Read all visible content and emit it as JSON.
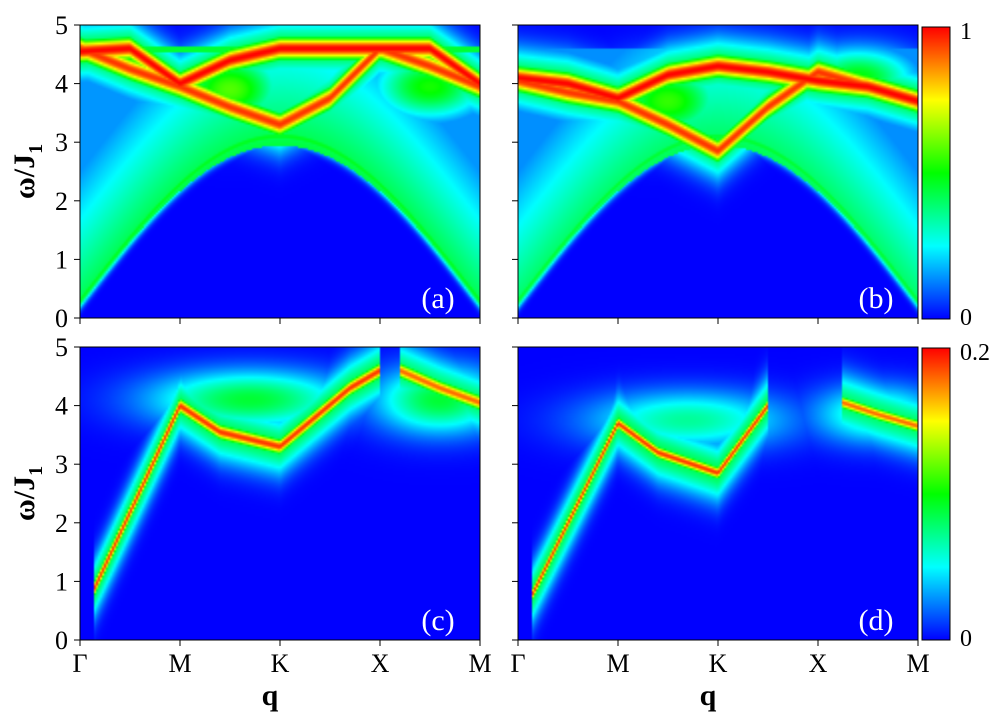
{
  "chart_data": {
    "type": "heatmap",
    "panels": [
      {
        "tag": "(a)",
        "ylabel": "ω/J",
        "ylabel_sub": "1",
        "xlabel": "",
        "ylim": [
          0,
          5
        ],
        "yticks": [
          "0",
          "1",
          "2",
          "3",
          "4",
          "5"
        ],
        "xticks": [],
        "colorbar": null,
        "bands": [
          {
            "x": [
              0,
              0.5,
              1,
              1.5,
              2,
              2.5,
              3,
              3.5,
              4
            ],
            "y": [
              4.6,
              4.25,
              3.95,
              3.6,
              3.3,
              3.75,
              4.6,
              4.3,
              3.95
            ],
            "w": 0.15,
            "a": 0.95
          },
          {
            "x": [
              0,
              0.5,
              1,
              1.5,
              2,
              2.5,
              3,
              3.5,
              4
            ],
            "y": [
              4.55,
              4.6,
              4.0,
              4.4,
              4.6,
              4.6,
              4.6,
              4.6,
              4.0
            ],
            "w": 0.15,
            "a": 1.0
          }
        ],
        "blobs": [
          {
            "x": 1.5,
            "y": 3.9,
            "rx": 0.38,
            "ry": 0.45,
            "a": 0.58
          },
          {
            "x": 3.5,
            "y": 3.95,
            "rx": 0.4,
            "ry": 0.4,
            "a": 0.52
          }
        ],
        "continuum": {
          "w": 0.55,
          "a": 0.42
        },
        "top_line": 4.6
      },
      {
        "tag": "(b)",
        "ylabel": "",
        "ylabel_sub": "",
        "xlabel": "",
        "ylim": [
          0,
          5
        ],
        "yticks": [],
        "xticks": [],
        "colorbar": {
          "max": "1",
          "min": "0"
        },
        "bands": [
          {
            "x": [
              0,
              0.5,
              1,
              1.5,
              2,
              2.5,
              3,
              3.5,
              4
            ],
            "y": [
              4.05,
              3.85,
              3.7,
              3.3,
              2.85,
              3.6,
              4.2,
              3.95,
              3.7
            ],
            "w": 0.15,
            "a": 0.95
          },
          {
            "x": [
              0,
              0.5,
              1,
              1.5,
              2,
              2.5,
              3,
              3.5,
              4
            ],
            "y": [
              4.1,
              4.0,
              3.75,
              4.15,
              4.3,
              4.2,
              4.05,
              3.95,
              3.7
            ],
            "w": 0.15,
            "a": 1.0
          }
        ],
        "blobs": [
          {
            "x": 1.5,
            "y": 3.7,
            "rx": 0.4,
            "ry": 0.45,
            "a": 0.55
          },
          {
            "x": 3.4,
            "y": 4.1,
            "rx": 0.4,
            "ry": 0.35,
            "a": 0.5
          }
        ],
        "continuum": {
          "w": 0.55,
          "a": 0.4
        },
        "top_line": null
      },
      {
        "tag": "(c)",
        "ylabel": "ω/J",
        "ylabel_sub": "1",
        "xlabel": "q",
        "ylim": [
          0,
          5
        ],
        "yticks": [
          "0",
          "1",
          "2",
          "3",
          "4",
          "5"
        ],
        "xticks": [
          "Γ",
          "M",
          "K",
          "X",
          "M"
        ],
        "colorbar": null,
        "bands": [
          {
            "x": [
              0.15,
              1,
              1.4,
              2,
              2.7,
              3
            ],
            "y": [
              0.9,
              4.0,
              3.55,
              3.3,
              4.3,
              4.6
            ],
            "w": 0.1,
            "a": 0.95
          },
          {
            "x": [
              3.2,
              3.6,
              4
            ],
            "y": [
              4.6,
              4.3,
              4.05
            ],
            "w": 0.1,
            "a": 0.9
          }
        ],
        "blobs": [
          {
            "x": 1.7,
            "y": 4.1,
            "rx": 0.7,
            "ry": 0.35,
            "a": 0.45
          },
          {
            "x": 3.6,
            "y": 4.1,
            "rx": 0.45,
            "ry": 0.4,
            "a": 0.45
          }
        ],
        "continuum": null,
        "top_line": null
      },
      {
        "tag": "(d)",
        "ylabel": "",
        "ylabel_sub": "",
        "xlabel": "q",
        "ylim": [
          0,
          5
        ],
        "yticks": [],
        "xticks": [
          "Γ",
          "M",
          "K",
          "X",
          "M"
        ],
        "colorbar": {
          "max": "0.2",
          "min": "0"
        },
        "bands": [
          {
            "x": [
              0.15,
              1,
              1.4,
              2,
              2.5
            ],
            "y": [
              0.8,
              3.7,
              3.2,
              2.85,
              4.0
            ],
            "w": 0.08,
            "a": 0.95
          },
          {
            "x": [
              3.25,
              3.6,
              4
            ],
            "y": [
              4.05,
              3.85,
              3.65
            ],
            "w": 0.08,
            "a": 0.9
          }
        ],
        "blobs": [
          {
            "x": 1.7,
            "y": 3.75,
            "rx": 0.7,
            "ry": 0.35,
            "a": 0.35
          },
          {
            "x": 3.6,
            "y": 3.85,
            "rx": 0.45,
            "ry": 0.35,
            "a": 0.35
          }
        ],
        "continuum": null,
        "top_line": null
      }
    ]
  }
}
